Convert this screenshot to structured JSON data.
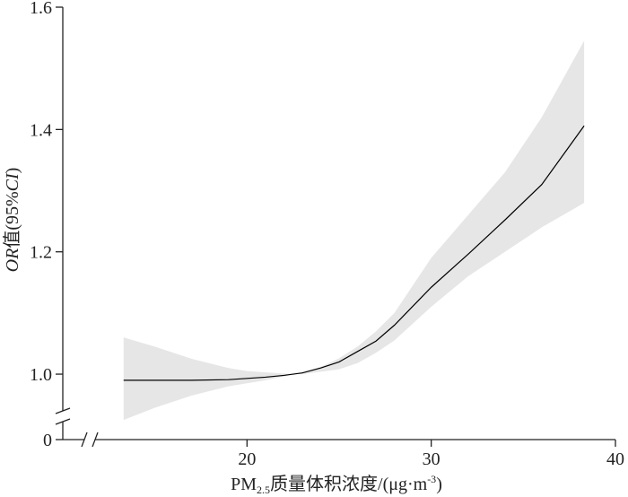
{
  "chart_data": {
    "type": "line",
    "x_label": {
      "main": "PM",
      "sub": "2.5",
      "rest": "质量体积浓度/(μg·m",
      "sup": "-3",
      "end": ")"
    },
    "y_label": {
      "italic1": "OR",
      "mid": "值(95%",
      "italic2": "CI",
      "end": ")"
    },
    "origin_label": "0",
    "axis_break": true,
    "x": [
      13.3,
      15,
      17,
      19,
      20,
      21,
      22,
      22.5,
      23,
      24,
      25,
      26,
      27,
      28,
      30,
      32,
      34,
      36,
      38.3
    ],
    "series": [
      {
        "color": "#000000",
        "values": [
          0.99,
          0.99,
          0.99,
          0.991,
          0.993,
          0.995,
          0.998,
          1.0,
          1.002,
          1.01,
          1.02,
          1.037,
          1.054,
          1.08,
          1.142,
          1.196,
          1.252,
          1.31,
          1.406
        ]
      }
    ],
    "band": {
      "color": "#e6e6e6",
      "upper": [
        1.06,
        1.045,
        1.025,
        1.01,
        1.005,
        1.003,
        1.001,
        1.0,
        1.003,
        1.012,
        1.026,
        1.045,
        1.07,
        1.1,
        1.19,
        1.26,
        1.33,
        1.42,
        1.545
      ],
      "lower": [
        0.925,
        0.945,
        0.965,
        0.98,
        0.985,
        0.99,
        0.996,
        1.0,
        1.0,
        1.004,
        1.008,
        1.018,
        1.035,
        1.055,
        1.11,
        1.16,
        1.2,
        1.24,
        1.28
      ]
    },
    "xlim": [
      10,
      40
    ],
    "ylim": [
      0.893,
      1.6
    ],
    "xticks": [
      20,
      30,
      40
    ],
    "yticks": [
      {
        "value": 1,
        "label": "1.0"
      },
      1.2,
      1.4,
      1.6
    ]
  }
}
